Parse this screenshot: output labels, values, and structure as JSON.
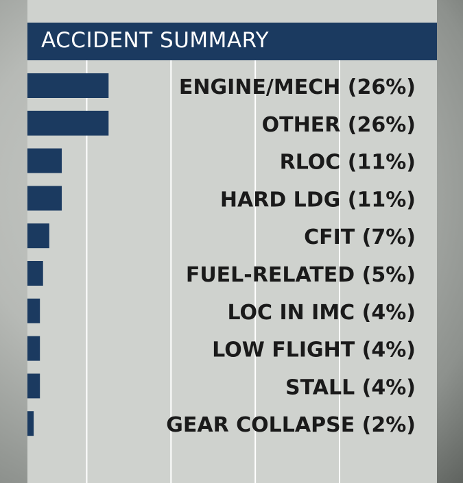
{
  "chart_data": {
    "type": "bar",
    "orientation": "horizontal",
    "title": "ACCIDENT SUMMARY",
    "categories": [
      "ENGINE/MECH (26%)",
      "OTHER (26%)",
      "RLOC (11%)",
      "HARD LDG (11%)",
      "CFIT (7%)",
      "FUEL-RELATED (5%)",
      "LOC IN IMC (4%)",
      "LOW FLIGHT (4%)",
      "STALL (4%)",
      "GEAR COLLAPSE (2%)"
    ],
    "values": [
      26,
      26,
      11,
      11,
      7,
      5,
      4,
      4,
      4,
      2
    ],
    "xlim": [
      0,
      125
    ],
    "grid": true,
    "legend": "none",
    "colors": {
      "bar": "#1b3a60",
      "title_bar": "#1b3a60",
      "panel": "#cfd2ce",
      "grid": "#ffffff",
      "label": "#1a1a1a"
    }
  }
}
